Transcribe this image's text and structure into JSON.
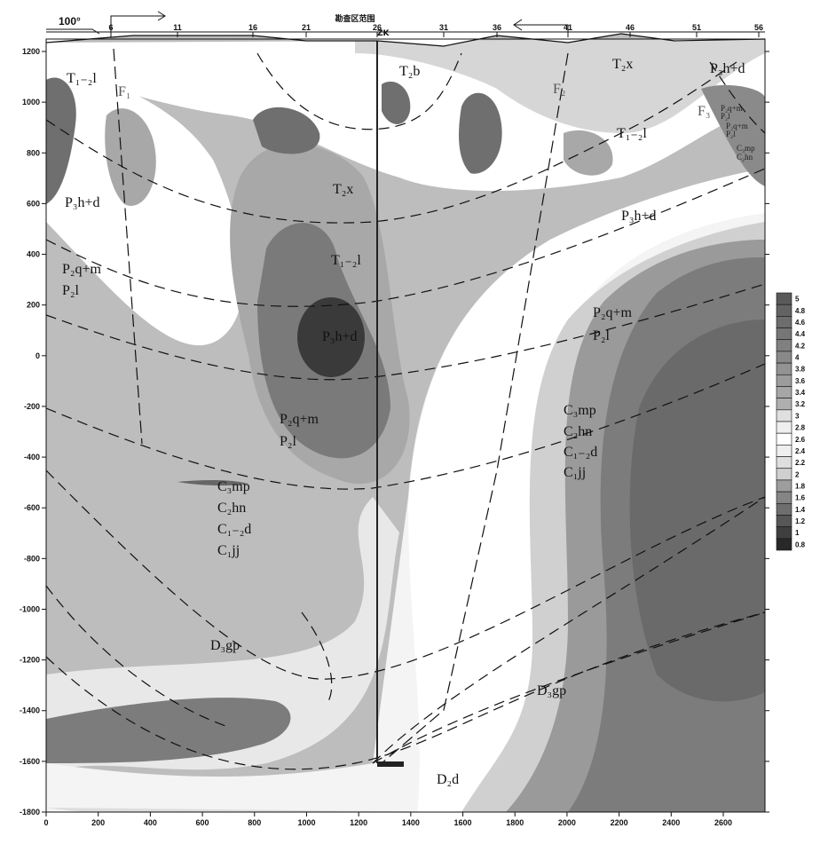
{
  "chart_data": {
    "type": "heatmap",
    "title": "勘查区范围",
    "azimuth_label": "100°",
    "xlabel": "",
    "ylabel": "",
    "xlim": [
      0,
      2750
    ],
    "ylim": [
      -1800,
      1250
    ],
    "x_ticks": [
      "0",
      "200",
      "400",
      "600",
      "800",
      "1000",
      "1200",
      "1400",
      "1600",
      "1800",
      "2000",
      "2200",
      "2400",
      "2600"
    ],
    "y_ticks": [
      "1200",
      "1000",
      "800",
      "600",
      "400",
      "200",
      "0",
      "-200",
      "-400",
      "-600",
      "-800",
      "-1000",
      "-1200",
      "-1400",
      "-1600",
      "-1800"
    ],
    "station_labels": [
      "6",
      "11",
      "16",
      "21",
      "26",
      "31",
      "36",
      "41",
      "46",
      "51",
      "56"
    ],
    "borehole_label": "ZK",
    "colorbar": {
      "ticks": [
        "5",
        "4.8",
        "4.6",
        "4.4",
        "4.2",
        "4",
        "3.8",
        "3.6",
        "3.4",
        "3.2",
        "3",
        "2.8",
        "2.6",
        "2.4",
        "2.2",
        "2",
        "1.8",
        "1.6",
        "1.4",
        "1.2",
        "1",
        "0.8"
      ],
      "range": [
        0.8,
        5
      ],
      "colors": {
        "low": "#2e2e2e",
        "mid": "#ffffff",
        "high": "#6a6a6a"
      }
    },
    "faults": [
      "F₁",
      "F₂",
      "F₃"
    ],
    "formations": [
      "T₁₋₂l",
      "T₂b",
      "T₂x",
      "P₃h+d",
      "P₂q+m",
      "P₂l",
      "T₁₋₂l",
      "T₂x",
      "P₃h+d",
      "T₁₋₂l",
      "P₂q+m",
      "P₂l",
      "P₂q+m",
      "P₂l",
      "P₃h+d",
      "P₂q+m",
      "P₂l",
      "C₃mp",
      "C₂hn",
      "C₁₋₂d",
      "C₁jj",
      "C₃mp",
      "C₂hn",
      "C₁₋₂d",
      "C₁jj",
      "D₃gp",
      "D₃gp",
      "D₂d",
      "P₃h+d",
      "P₂q+m",
      "P₂l",
      "C₃mp",
      "C₂hn"
    ],
    "grid": false
  }
}
